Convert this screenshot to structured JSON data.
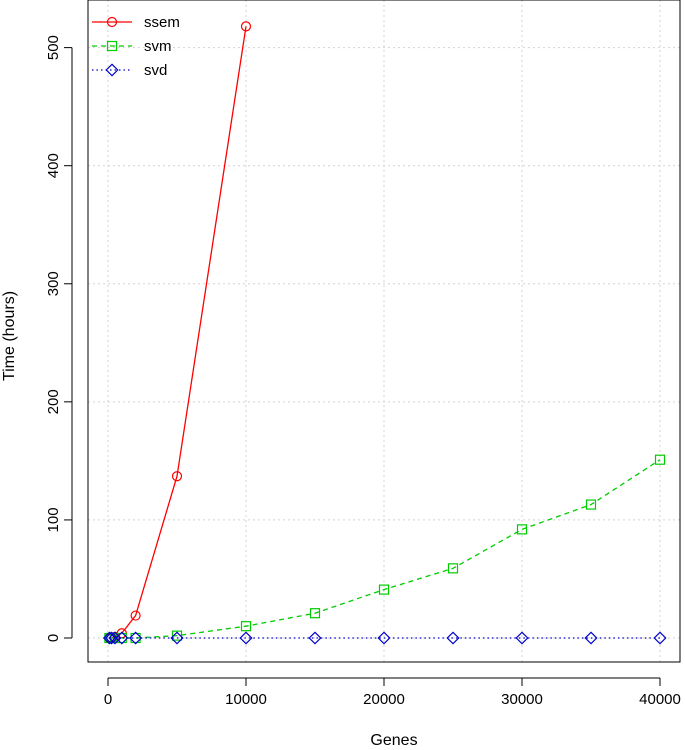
{
  "chart_data": {
    "type": "line",
    "title": "",
    "xlabel": "Genes",
    "ylabel": "Time (hours)",
    "xlim": [
      0,
      40000
    ],
    "ylim": [
      0,
      520
    ],
    "xticks": [
      0,
      10000,
      20000,
      30000,
      40000
    ],
    "yticks": [
      0,
      100,
      200,
      300,
      400,
      500
    ],
    "xtick_labels": [
      "0",
      "10000",
      "20000",
      "30000",
      "40000"
    ],
    "ytick_labels": [
      "0",
      "100",
      "200",
      "300",
      "400",
      "500"
    ],
    "grid": true,
    "legend_position": "top-left",
    "series": [
      {
        "name": "ssem",
        "color": "#ff0000",
        "line_style": "solid",
        "marker": "circle",
        "x": [
          100,
          250,
          500,
          1000,
          2000,
          5000,
          10000
        ],
        "y": [
          0,
          0,
          1,
          4,
          19,
          137,
          518
        ]
      },
      {
        "name": "svm",
        "color": "#00cc00",
        "line_style": "dashed",
        "marker": "square",
        "x": [
          100,
          250,
          500,
          1000,
          2000,
          5000,
          10000,
          15000,
          20000,
          25000,
          30000,
          35000,
          40000
        ],
        "y": [
          0,
          0,
          0,
          0,
          0,
          2,
          10,
          21,
          41,
          59,
          92,
          113,
          151
        ]
      },
      {
        "name": "svd",
        "color": "#0000cc",
        "line_style": "dotted",
        "marker": "diamond",
        "x": [
          100,
          250,
          500,
          1000,
          2000,
          5000,
          10000,
          15000,
          20000,
          25000,
          30000,
          35000,
          40000
        ],
        "y": [
          0,
          0,
          0,
          0,
          0,
          0,
          0,
          0,
          0,
          0,
          0,
          0,
          0
        ]
      }
    ]
  }
}
